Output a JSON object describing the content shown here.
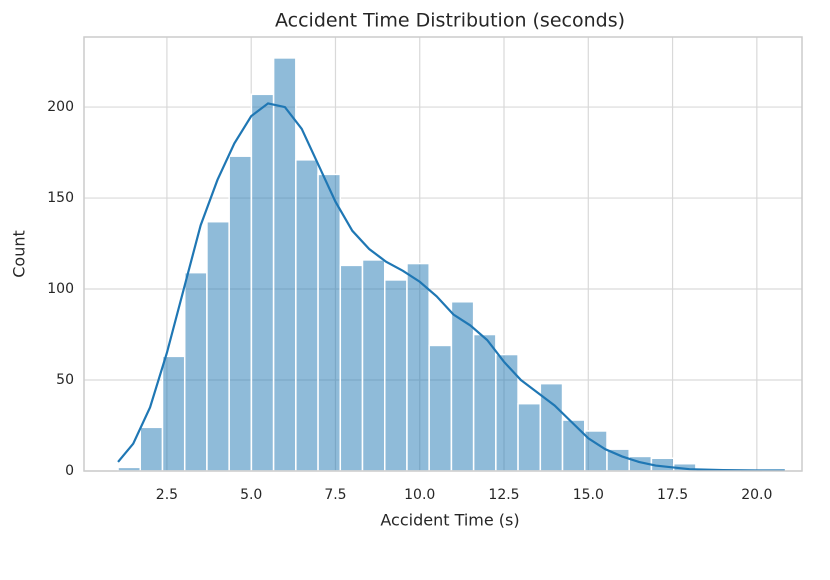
{
  "chart_data": {
    "type": "histogram",
    "title": "Accident Time Distribution (seconds)",
    "xlabel": "Accident Time (s)",
    "ylabel": "Count",
    "bins": [
      1.05,
      1.709,
      2.369,
      3.028,
      3.687,
      4.347,
      5.006,
      5.665,
      6.324,
      6.984,
      7.643,
      8.302,
      8.962,
      9.621,
      10.28,
      10.94,
      11.599,
      12.258,
      12.917,
      13.577,
      14.236,
      14.895,
      15.555,
      16.214,
      16.873,
      17.533,
      18.192,
      18.851,
      19.51,
      20.17,
      20.83
    ],
    "counts": [
      2,
      24,
      63,
      109,
      137,
      173,
      207,
      227,
      171,
      163,
      113,
      116,
      105,
      114,
      69,
      93,
      75,
      64,
      37,
      48,
      28,
      22,
      12,
      8,
      7,
      4,
      1,
      1,
      0,
      1
    ],
    "color": "#1f77b4",
    "kde": {
      "x": [
        1.05,
        1.5,
        2,
        2.5,
        3,
        3.5,
        4,
        4.5,
        5,
        5.5,
        6,
        6.5,
        7,
        7.5,
        8,
        8.5,
        9,
        9.5,
        10,
        10.5,
        11,
        11.5,
        12,
        12.5,
        13,
        13.5,
        14,
        14.5,
        15,
        15.5,
        16,
        16.5,
        17,
        18,
        19,
        20,
        20.83
      ],
      "y": [
        5,
        15,
        35,
        65,
        100,
        135,
        160,
        180,
        195,
        202,
        200,
        188,
        168,
        148,
        132,
        122,
        115,
        110,
        104,
        96,
        86,
        80,
        72,
        60,
        50,
        43,
        36,
        27,
        18,
        12,
        8,
        5,
        3,
        1,
        0.5,
        0.3,
        0.3
      ]
    },
    "xlim": [
      0.04,
      21.34
    ],
    "ylim": [
      0,
      238.5
    ],
    "xticks": [
      2.5,
      {
        "value": 5,
        "label": "5.0"
      },
      7.5,
      {
        "value": 10,
        "label": "10.0"
      },
      12.5,
      {
        "value": 15,
        "label": "15.0"
      },
      17.5,
      {
        "value": 20,
        "label": "20.0"
      }
    ],
    "yticks": [
      0,
      50,
      100,
      150,
      200
    ],
    "grid": true
  }
}
